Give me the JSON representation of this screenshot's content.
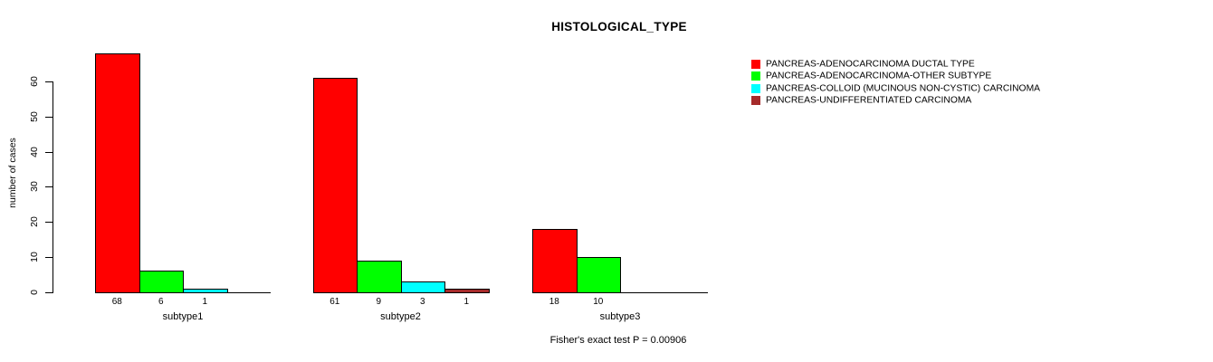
{
  "chart_data": {
    "type": "bar",
    "title": "HISTOLOGICAL_TYPE",
    "xlabel": "",
    "ylabel": "number of cases",
    "ylim": [
      0,
      60
    ],
    "yticks": [
      0,
      10,
      20,
      30,
      40,
      50,
      60
    ],
    "grid": false,
    "legend_position": "right",
    "bar_value_labels": true,
    "categories": [
      "subtype1",
      "subtype2",
      "subtype3"
    ],
    "series": [
      {
        "name": "PANCREAS-ADENOCARCINOMA DUCTAL TYPE",
        "color": "#ff0000",
        "values": [
          68,
          61,
          18
        ]
      },
      {
        "name": "PANCREAS-ADENOCARCINOMA-OTHER SUBTYPE",
        "color": "#00ff00",
        "values": [
          6,
          9,
          10
        ]
      },
      {
        "name": "PANCREAS-COLLOID (MUCINOUS NON-CYSTIC) CARCINOMA",
        "color": "#00ffff",
        "values": [
          1,
          3,
          0
        ]
      },
      {
        "name": "PANCREAS-UNDIFFERENTIATED CARCINOMA",
        "color": "#a52a2a",
        "values": [
          0,
          1,
          0
        ]
      }
    ],
    "annotation": "Fisher's exact test P = 0.00906",
    "axis_color": "#000000",
    "background_color": "#ffffff"
  }
}
